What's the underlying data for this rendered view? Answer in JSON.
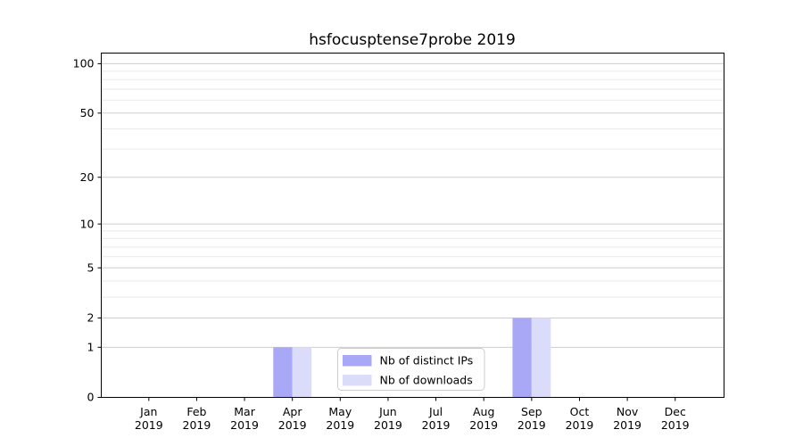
{
  "chart_data": {
    "type": "bar",
    "title": "hsfocusptense7probe 2019",
    "categories": [
      "Jan",
      "Feb",
      "Mar",
      "Apr",
      "May",
      "Jun",
      "Jul",
      "Aug",
      "Sep",
      "Oct",
      "Nov",
      "Dec"
    ],
    "category_year": "2019",
    "series": [
      {
        "name": "Nb of distinct IPs",
        "color": "#a8a8f6",
        "values": [
          0,
          0,
          0,
          1,
          0,
          0,
          0,
          0,
          2,
          0,
          0,
          0
        ]
      },
      {
        "name": "Nb of downloads",
        "color": "#dbdbfa",
        "values": [
          0,
          0,
          0,
          1,
          0,
          0,
          0,
          0,
          2,
          0,
          0,
          0
        ]
      }
    ],
    "yscale": "log1p",
    "ylim": [
      0,
      116
    ],
    "y_major_ticks": [
      0,
      1,
      2,
      5,
      10,
      20,
      50,
      100
    ],
    "y_minor_ticks": [
      3,
      4,
      6,
      7,
      8,
      9,
      30,
      40,
      60,
      70,
      80,
      90
    ],
    "grid": {
      "major_color": "#cdcdcd",
      "minor_color": "#eaeaea"
    },
    "legend": {
      "position": "lower center"
    }
  }
}
